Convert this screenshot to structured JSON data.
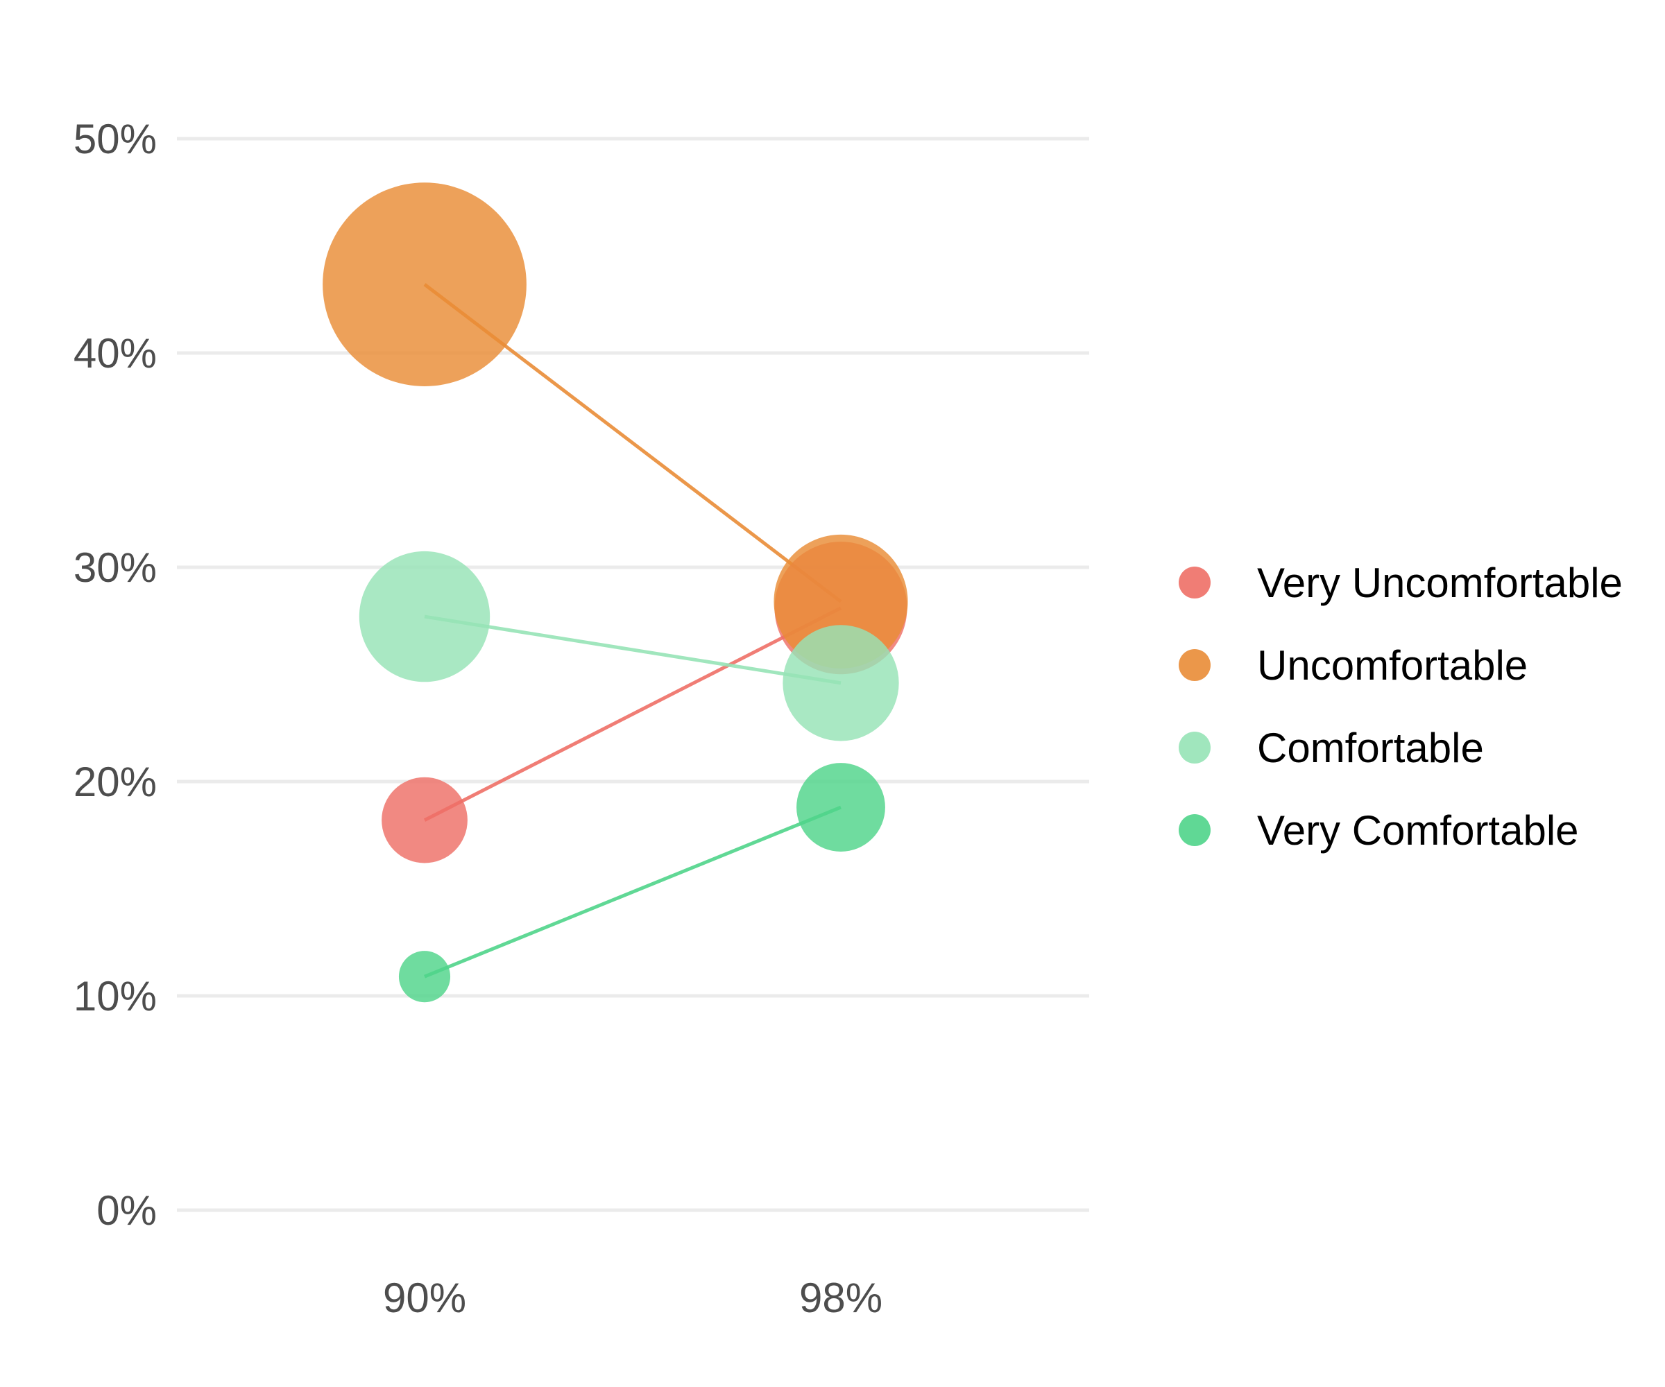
{
  "chart_data": {
    "type": "scatter",
    "title": "",
    "xlabel": "",
    "ylabel": "",
    "categories": [
      "90%",
      "98%"
    ],
    "ylim": [
      0,
      50
    ],
    "y_ticks": [
      0,
      10,
      20,
      30,
      40,
      50
    ],
    "y_tick_suffix": "%",
    "grid": "horizontal",
    "legend_position": "right",
    "marker_size_encodes": "y value",
    "lines_connect": "each series across categories",
    "series": [
      {
        "name": "Very Uncomfortable",
        "color": "#ee6f66",
        "values": [
          18.2,
          28.1
        ]
      },
      {
        "name": "Uncomfortable",
        "color": "#e98c36",
        "values": [
          43.2,
          28.4
        ]
      },
      {
        "name": "Comfortable",
        "color": "#96e3b6",
        "values": [
          27.7,
          24.6
        ]
      },
      {
        "name": "Very Comfortable",
        "color": "#4fd48a",
        "values": [
          10.9,
          18.8
        ]
      }
    ]
  }
}
